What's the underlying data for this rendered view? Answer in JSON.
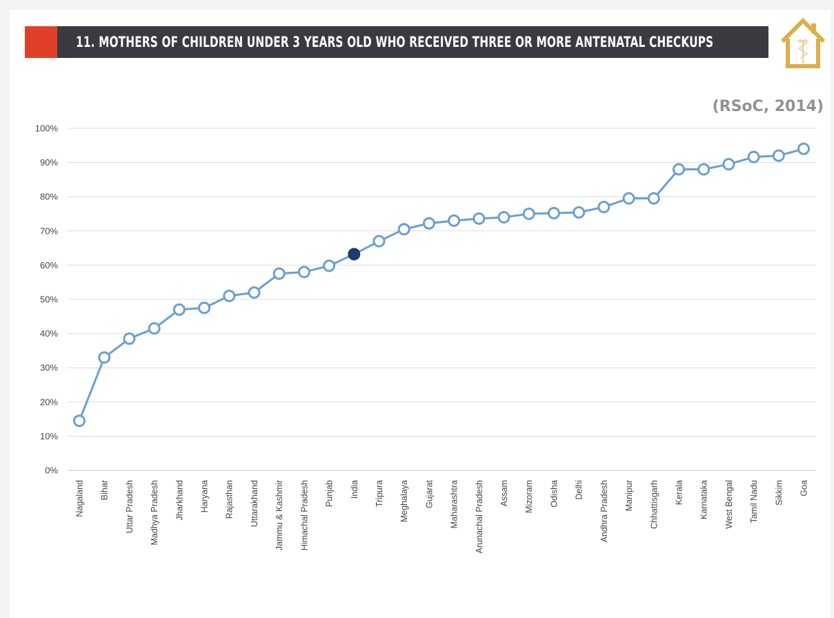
{
  "header": {
    "title": "11. MOTHERS OF CHILDREN UNDER 3 YEARS OLD WHO RECEIVED THREE OR MORE ANTENATAL CHECKUPS",
    "accent_color": "#e0402a",
    "bar_color": "#3a3b40",
    "logo_icon": "house-caduceus-icon",
    "logo_color": "#dcae4c"
  },
  "chart_data": {
    "type": "line",
    "source": "(RSoC,  2014)",
    "categories": [
      "Nagaland",
      "Bihar",
      "Uttar Pradesh",
      "Madhya Pradesh",
      "Jharkhand",
      "Haryana",
      "Rajasthan",
      "Uttarakhand",
      "Jammu & Kashmir",
      "Himachal Pradesh",
      "Punjab",
      "India",
      "Tripura",
      "Meghalaya",
      "Gujarat",
      "Maharashtra",
      "Arunachal Pradesh",
      "Assam",
      "Mizoram",
      "Odisha",
      "Delhi",
      "Andhra Pradesh",
      "Manipur",
      "Chhattisgarh",
      "Kerala",
      "Karnataka",
      "West Bengal",
      "Tamil Nadu",
      "Sikkim",
      "Goa"
    ],
    "values": [
      14.5,
      33,
      38.5,
      41.5,
      47,
      47.5,
      51,
      52,
      57.5,
      58,
      59.8,
      63.2,
      67,
      70.5,
      72.2,
      73,
      73.6,
      74,
      75,
      75.2,
      75.4,
      77,
      79.5,
      79.5,
      88,
      88,
      89.5,
      91.6,
      92,
      94
    ],
    "highlight_category": "India",
    "ylim": [
      0,
      100
    ],
    "yticks": [
      0,
      10,
      20,
      30,
      40,
      50,
      60,
      70,
      80,
      90,
      100
    ],
    "ytick_labels": [
      "0%",
      "10%",
      "20%",
      "30%",
      "40%",
      "50%",
      "60%",
      "70%",
      "80%",
      "90%",
      "100%"
    ],
    "xlabel": "",
    "ylabel": "",
    "grid": true,
    "line_color": "#6a9fd0",
    "highlight_color": "#1e3a6e",
    "grid_color": "#dcdcdc"
  }
}
